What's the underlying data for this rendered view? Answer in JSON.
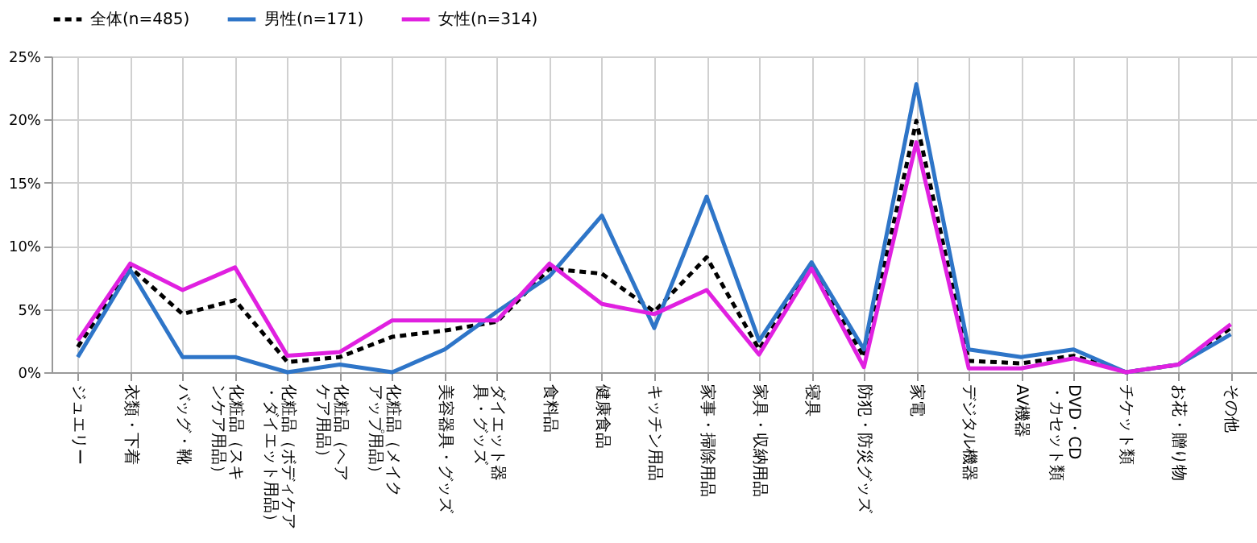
{
  "chart_data": {
    "type": "line",
    "categories": [
      "ジュエリー",
      "衣類・下着",
      "バッグ・靴",
      "化粧品（スキンケア用品）",
      "化粧品（ボディケア・ダイエット用品）",
      "化粧品（ヘアケア用品）",
      "化粧品（メイクアップ用品）",
      "美容器具・グッズ",
      "ダイエット器具・グッズ",
      "食料品",
      "健康食品",
      "キッチン用品",
      "家事・掃除用品",
      "家具・収納用品",
      "寝具",
      "防犯・防災グッズ",
      "家電",
      "デジタル機器",
      "AV機器",
      "DVD・CD・カセット類",
      "チケット類",
      "お花・贈り物",
      "その他"
    ],
    "series": [
      {
        "name": "全体(n=485)",
        "color": "#000000",
        "line_style": "dashed",
        "values": [
          2.0,
          8.3,
          4.6,
          5.7,
          0.8,
          1.2,
          2.8,
          3.3,
          4.0,
          8.2,
          7.8,
          4.8,
          9.1,
          1.8,
          8.4,
          1.2,
          19.9,
          0.9,
          0.7,
          1.3,
          0,
          0.6,
          3.5
        ]
      },
      {
        "name": "男性(n=171)",
        "color": "#2e75c8",
        "line_style": "solid",
        "values": [
          1.2,
          8.1,
          1.2,
          1.2,
          0,
          0.6,
          0,
          1.8,
          4.8,
          7.6,
          12.4,
          3.5,
          13.9,
          2.5,
          8.7,
          1.8,
          22.8,
          1.8,
          1.2,
          1.8,
          0,
          0.6,
          3.0
        ]
      },
      {
        "name": "女性(n=314)",
        "color": "#e020e0",
        "line_style": "solid",
        "values": [
          2.5,
          8.6,
          6.5,
          8.3,
          1.3,
          1.6,
          4.1,
          4.1,
          4.1,
          8.6,
          5.4,
          4.6,
          6.5,
          1.4,
          8.2,
          0.4,
          18.2,
          0.3,
          0.3,
          1.1,
          0,
          0.6,
          3.8
        ]
      }
    ],
    "ylim": [
      0,
      25
    ],
    "yticks": [
      {
        "value": 0,
        "label": "0%"
      },
      {
        "value": 5,
        "label": "5%"
      },
      {
        "value": 10,
        "label": "10%"
      },
      {
        "value": 15,
        "label": "15%"
      },
      {
        "value": 20,
        "label": "20%"
      },
      {
        "value": 25,
        "label": "25%"
      }
    ],
    "grid": true,
    "legend": "top",
    "marker": "none"
  }
}
